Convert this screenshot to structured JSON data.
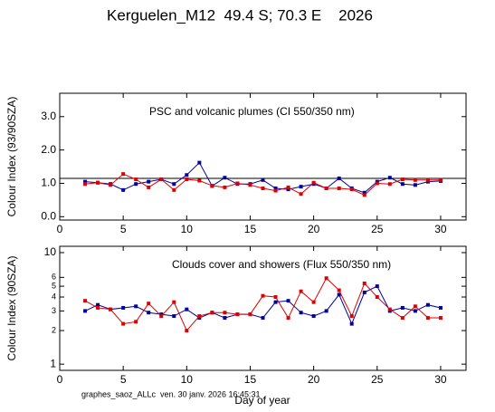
{
  "title": "Kerguelen_M12  49.4 S; 70.3 E    2026",
  "footer": "graphes_saoz_ALLc  ven. 30 janv. 2026 16:45:31",
  "chart_data": [
    {
      "type": "line",
      "annotation": "PSC and volcanic plumes (CI 550/350 nm)",
      "ylabel": "Colour Index (93/90SZA)",
      "x": [
        2,
        3,
        4,
        5,
        6,
        7,
        8,
        9,
        10,
        11,
        12,
        13,
        14,
        15,
        16,
        17,
        18,
        19,
        20,
        21,
        22,
        23,
        24,
        25,
        26,
        27,
        28,
        29,
        30
      ],
      "series": [
        {
          "color": "#0000a0",
          "values": [
            1.05,
            1.02,
            0.98,
            0.8,
            0.98,
            1.05,
            1.12,
            0.98,
            1.25,
            1.62,
            0.92,
            1.17,
            0.98,
            0.98,
            1.1,
            0.85,
            0.82,
            0.9,
            0.98,
            0.85,
            1.15,
            0.85,
            0.72,
            1.05,
            1.17,
            0.98,
            0.95,
            1.05,
            1.07
          ]
        },
        {
          "color": "#e00000",
          "values": [
            0.98,
            1.02,
            0.95,
            1.28,
            1.12,
            0.88,
            1.12,
            0.8,
            1.12,
            1.08,
            0.93,
            0.88,
            1.0,
            0.95,
            0.85,
            0.78,
            0.88,
            0.68,
            1.02,
            0.85,
            0.85,
            0.82,
            0.65,
            1.0,
            0.98,
            1.12,
            1.1,
            1.1,
            1.1
          ]
        }
      ],
      "hline": 1.15,
      "xlim": [
        0,
        32
      ],
      "xticks": [
        0,
        5,
        10,
        15,
        20,
        25,
        30
      ],
      "ylim": [
        -0.1,
        3.7
      ],
      "yticks": [
        {
          "value": 0,
          "label": "0.0"
        },
        {
          "value": 1,
          "label": "1.0"
        },
        {
          "value": 2,
          "label": "2.0"
        },
        {
          "value": 3,
          "label": "3.0"
        }
      ]
    },
    {
      "type": "line",
      "annotation": "Clouds cover and showers (Flux 550/350 nm)",
      "ylabel": "Colour Index (90SZA)",
      "xlabel": "Day of year",
      "log_scale": true,
      "x": [
        2,
        3,
        4,
        5,
        6,
        7,
        8,
        9,
        10,
        11,
        12,
        13,
        14,
        15,
        16,
        17,
        18,
        19,
        20,
        21,
        22,
        23,
        24,
        25,
        26,
        27,
        28,
        29,
        30
      ],
      "series": [
        {
          "color": "#0000a0",
          "values": [
            3.0,
            3.4,
            3.1,
            3.2,
            3.3,
            2.9,
            2.8,
            2.7,
            3.1,
            2.6,
            2.9,
            2.6,
            2.8,
            2.8,
            2.6,
            3.6,
            3.7,
            2.9,
            2.7,
            3.0,
            4.2,
            2.3,
            4.4,
            5.0,
            3.0,
            3.2,
            3.0,
            3.4,
            3.2
          ]
        },
        {
          "color": "#e00000",
          "values": [
            3.7,
            3.2,
            3.1,
            2.3,
            2.4,
            3.5,
            2.7,
            3.6,
            2.0,
            2.7,
            2.9,
            2.9,
            2.8,
            2.8,
            4.1,
            4.0,
            2.6,
            4.5,
            3.6,
            5.9,
            4.6,
            2.7,
            5.3,
            4.0,
            3.1,
            2.6,
            3.3,
            2.6,
            2.6
          ]
        }
      ],
      "xlim": [
        0,
        32
      ],
      "xticks": [
        0,
        5,
        10,
        15,
        20,
        25,
        30
      ],
      "ylim": [
        0.88,
        11.4
      ],
      "yticks": [
        1,
        2,
        3,
        4,
        5,
        6,
        10
      ]
    }
  ]
}
